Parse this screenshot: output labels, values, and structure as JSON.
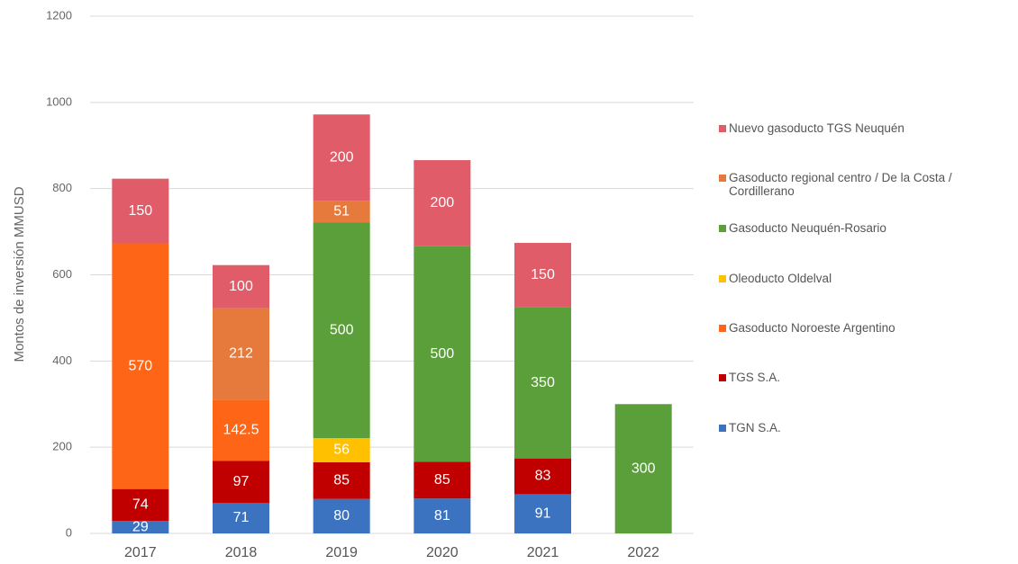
{
  "chart_data": {
    "type": "stacked_bar",
    "y_label": "Montos de inversión MMUSD",
    "categories": [
      "2017",
      "2018",
      "2019",
      "2020",
      "2021",
      "2022"
    ],
    "series": [
      {
        "name": "TGN S.A.",
        "color": "#3b73c0",
        "values": [
          29,
          71,
          80,
          81,
          91,
          null
        ]
      },
      {
        "name": "TGS S.A.",
        "color": "#c00000",
        "values": [
          74,
          97,
          85,
          85,
          83,
          null
        ]
      },
      {
        "name": "Gasoducto Noroeste Argentino",
        "color": "#ff6516",
        "values": [
          570,
          142.5,
          null,
          null,
          null,
          null
        ]
      },
      {
        "name": "Oleoducto Oldelval",
        "color": "#ffc000",
        "values": [
          null,
          null,
          56,
          null,
          null,
          null
        ]
      },
      {
        "name": "Gasoducto Neuquén-Rosario",
        "color": "#5a9f3a",
        "values": [
          null,
          null,
          500,
          500,
          350,
          300
        ]
      },
      {
        "name": "Gasoducto regional centro /  De la Costa / Cordillerano",
        "color": "#e57a3c",
        "values": [
          null,
          212,
          51,
          null,
          null,
          null
        ]
      },
      {
        "name": "Nuevo gasoducto TGS Neuquén",
        "color": "#e05c68",
        "values": [
          150,
          100,
          200,
          200,
          150,
          null
        ]
      }
    ],
    "ylim": [
      0,
      1200
    ],
    "yticks": [
      0,
      200,
      400,
      600,
      800,
      1000,
      1200
    ],
    "grid": true,
    "legend": "right"
  }
}
